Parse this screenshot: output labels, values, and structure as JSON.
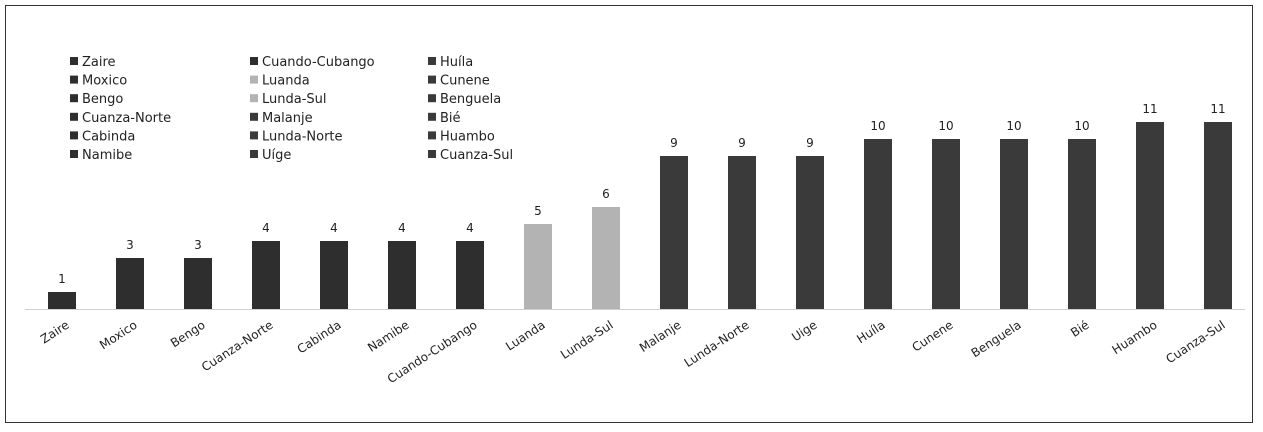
{
  "chart_data": {
    "type": "bar",
    "categories": [
      "Zaire",
      "Moxico",
      "Bengo",
      "Cuanza-Norte",
      "Cabinda",
      "Namibe",
      "Cuando-Cubango",
      "Luanda",
      "Lunda-Sul",
      "Malanje",
      "Lunda-Norte",
      "Uíge",
      "Huíla",
      "Cunene",
      "Benguela",
      "Bié",
      "Huambo",
      "Cuanza-Sul"
    ],
    "values": [
      1,
      3,
      3,
      4,
      4,
      4,
      4,
      5,
      6,
      9,
      9,
      9,
      10,
      10,
      10,
      10,
      11,
      11
    ],
    "colors": [
      "#2e2e2e",
      "#2e2e2e",
      "#2e2e2e",
      "#2e2e2e",
      "#2e2e2e",
      "#2e2e2e",
      "#2e2e2e",
      "#b3b3b3",
      "#b3b3b3",
      "#3a3a3a",
      "#3a3a3a",
      "#3a3a3a",
      "#3a3a3a",
      "#3a3a3a",
      "#3a3a3a",
      "#3a3a3a",
      "#3a3a3a",
      "#3a3a3a"
    ],
    "legend": [
      "Zaire",
      "Moxico",
      "Bengo",
      "Cuanza-Norte",
      "Cabinda",
      "Namibe",
      "Cuando-Cubango",
      "Luanda",
      "Lunda-Sul",
      "Malanje",
      "Lunda-Norte",
      "Uíge",
      "Huíla",
      "Cunene",
      "Benguela",
      "Bié",
      "Huambo",
      "Cuanza-Sul"
    ],
    "legend_placement": "top-left",
    "xticklabels": [
      "Zaire",
      "Moxico",
      "Bengo",
      "Cuanza-Norte",
      "Cabinda",
      "Namibe",
      "Cuando-Cubango",
      "Luanda",
      "Lunda-Sul",
      "Malanje",
      "Lunda-Norte",
      "Uige",
      "Huíla",
      "Cunene",
      "Benguela",
      "Bié",
      "Huambo",
      "Cuanza-Sul"
    ],
    "ylim": [
      0,
      11
    ],
    "grid": false,
    "title": "",
    "xlabel": "",
    "ylabel": ""
  }
}
